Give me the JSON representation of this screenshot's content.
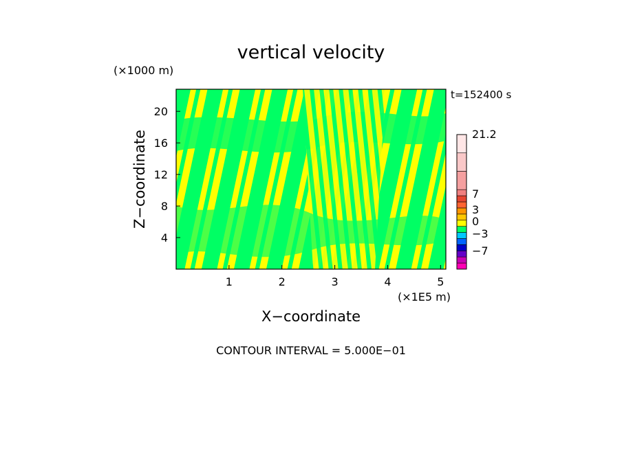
{
  "chart_data": {
    "type": "heatmap",
    "title": "vertical velocity",
    "xlabel": "X−coordinate",
    "ylabel": "Z−coordinate",
    "x_unit": "(×1E5 m)",
    "y_unit": "(×1000 m)",
    "time_label": "t=152400 s",
    "footer": "CONTOUR INTERVAL = 5.000E−01",
    "xlim": [
      0,
      5.1
    ],
    "ylim": [
      0,
      22.8
    ],
    "x_ticks": [
      1,
      2,
      3,
      4,
      5
    ],
    "y_ticks": [
      4,
      8,
      12,
      16,
      20
    ],
    "colorbar": {
      "labels": [
        "21.2",
        "7",
        "3",
        "0",
        "−3",
        "−7"
      ],
      "label_values": [
        21.2,
        7,
        3,
        0,
        -3,
        -7
      ],
      "colors": [
        "#ff00b4",
        "#c800b4",
        "#6400c8",
        "#0000c8",
        "#0064ff",
        "#00c8ff",
        "#00ff64",
        "#ffff00",
        "#ffc800",
        "#ff9600",
        "#ff6432",
        "#e64632",
        "#f08080",
        "#f5a0a0",
        "#fac8c8",
        "#ffe6e6"
      ]
    },
    "dominant_colors": {
      "positive": "#ffff00",
      "negative": "#00ff64"
    }
  }
}
